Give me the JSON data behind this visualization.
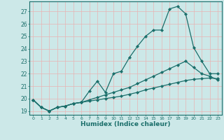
{
  "xlabel": "Humidex (Indice chaleur)",
  "background_color": "#cce8e8",
  "line_color": "#1a6e6a",
  "grid_color_h": "#e8b4b4",
  "grid_color_v": "#e8b4b4",
  "xlim": [
    -0.5,
    23.5
  ],
  "ylim": [
    18.7,
    27.8
  ],
  "xticks": [
    0,
    1,
    2,
    3,
    4,
    5,
    6,
    7,
    8,
    9,
    10,
    11,
    12,
    13,
    14,
    15,
    16,
    17,
    18,
    19,
    20,
    21,
    22,
    23
  ],
  "yticks": [
    19,
    20,
    21,
    22,
    23,
    24,
    25,
    26,
    27
  ],
  "lines": [
    {
      "x": [
        0,
        1,
        2,
        3,
        4,
        5,
        6,
        7,
        8,
        9,
        10,
        11,
        12,
        13,
        14,
        15,
        16,
        17,
        18,
        19,
        20,
        21,
        22,
        23
      ],
      "y": [
        19.9,
        19.3,
        19.0,
        19.3,
        19.4,
        19.6,
        19.7,
        20.6,
        21.4,
        20.5,
        22.0,
        22.2,
        23.3,
        24.2,
        25.0,
        25.5,
        25.5,
        27.2,
        27.4,
        26.8,
        24.1,
        23.0,
        22.0,
        22.0
      ]
    },
    {
      "x": [
        0,
        1,
        2,
        3,
        4,
        5,
        6,
        7,
        8,
        9,
        10,
        11,
        12,
        13,
        14,
        15,
        16,
        17,
        18,
        19,
        20,
        21,
        22,
        23
      ],
      "y": [
        19.9,
        19.3,
        19.0,
        19.3,
        19.4,
        19.6,
        19.7,
        19.9,
        20.1,
        20.3,
        20.5,
        20.7,
        20.9,
        21.2,
        21.5,
        21.8,
        22.1,
        22.4,
        22.7,
        23.0,
        22.5,
        22.0,
        21.8,
        21.5
      ]
    },
    {
      "x": [
        0,
        1,
        2,
        3,
        4,
        5,
        6,
        7,
        8,
        9,
        10,
        11,
        12,
        13,
        14,
        15,
        16,
        17,
        18,
        19,
        20,
        21,
        22,
        23
      ],
      "y": [
        19.9,
        19.3,
        19.0,
        19.3,
        19.4,
        19.6,
        19.7,
        19.8,
        19.9,
        20.0,
        20.1,
        20.2,
        20.35,
        20.5,
        20.7,
        20.85,
        21.0,
        21.15,
        21.3,
        21.45,
        21.55,
        21.6,
        21.65,
        21.6
      ]
    }
  ]
}
